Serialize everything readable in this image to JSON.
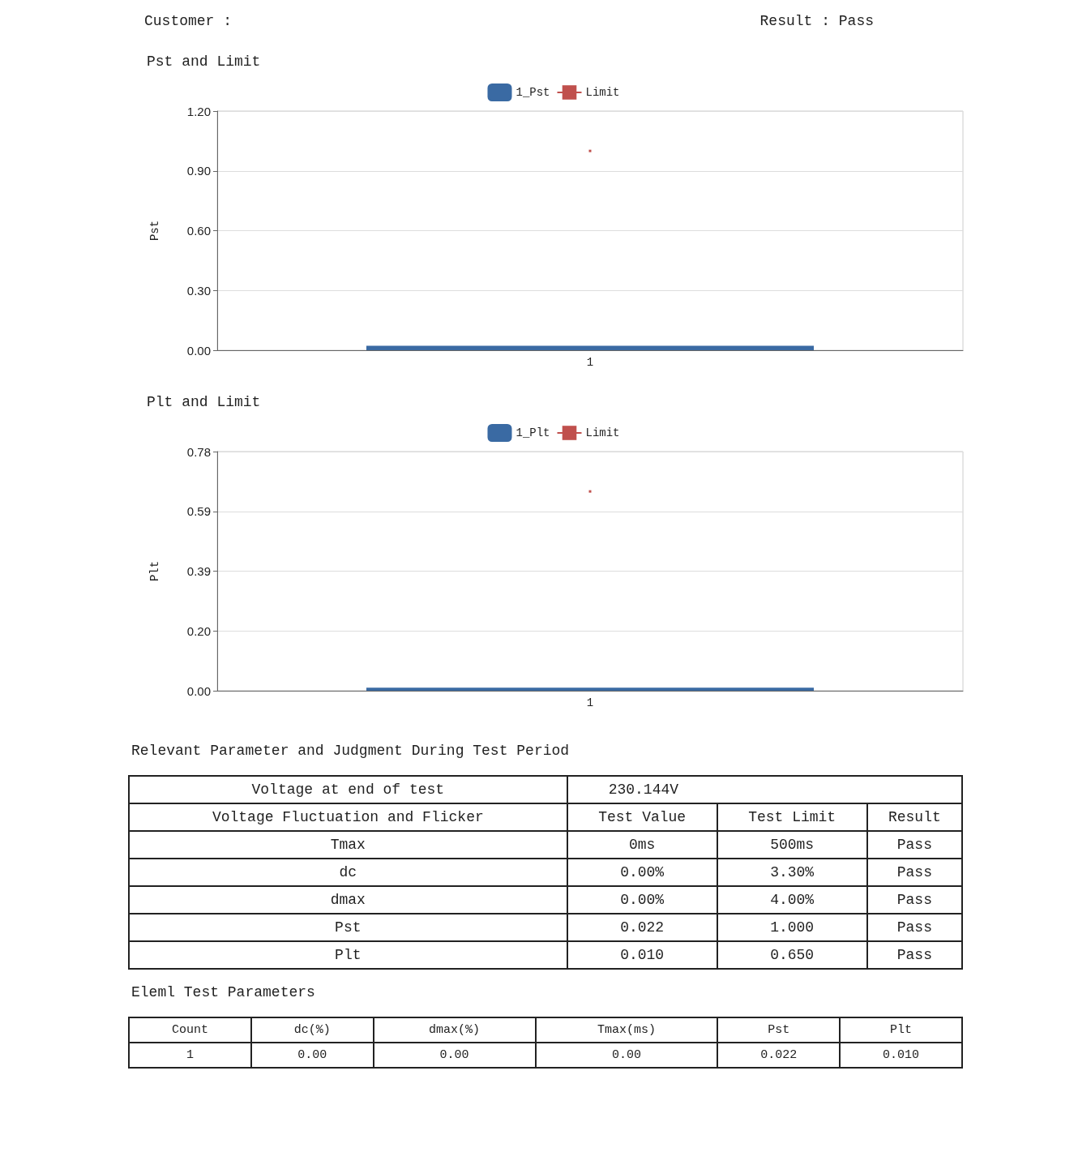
{
  "chart_data": [
    {
      "type": "other",
      "annotations": [
        "Customer :",
        "Result : Pass"
      ]
    },
    {
      "type": "bar",
      "title": "Pst and Limit",
      "ylabel": "Pst",
      "categories": [
        "1"
      ],
      "series": [
        {
          "name": "1_Pst",
          "type": "bar",
          "color": "#3a6aa3",
          "values": [
            0.022
          ]
        },
        {
          "name": "Limit",
          "type": "line",
          "color": "#c0504d",
          "values": [
            1.0
          ]
        }
      ],
      "ylim": [
        0,
        1.2
      ],
      "yticks": [
        {
          "value": 0,
          "label": "0.00"
        },
        {
          "value": 0.3,
          "label": "0.30"
        },
        {
          "value": 0.6,
          "label": "0.60"
        },
        {
          "value": 0.9,
          "label": "0.90"
        },
        {
          "value": 1.2,
          "label": "1.20"
        }
      ],
      "grid": "y",
      "legend": "top",
      "marker": "square"
    },
    {
      "type": "bar",
      "title": "Plt and Limit",
      "ylabel": "Plt",
      "categories": [
        "1"
      ],
      "series": [
        {
          "name": "1_Plt",
          "type": "bar",
          "color": "#3a6aa3",
          "values": [
            0.01
          ]
        },
        {
          "name": "Limit",
          "type": "line",
          "color": "#c0504d",
          "values": [
            0.65
          ]
        }
      ],
      "ylim": [
        0,
        0.78
      ],
      "yticks": [
        {
          "value": 0,
          "label": "0.00"
        },
        {
          "value": 0.195,
          "label": "0.20"
        },
        {
          "value": 0.39,
          "label": "0.39"
        },
        {
          "value": 0.585,
          "label": "0.59"
        },
        {
          "value": 0.78,
          "label": "0.78"
        }
      ],
      "grid": "y",
      "legend": "top",
      "marker": "square"
    },
    {
      "type": "other",
      "title": "Relevant Parameter and Judgment During Test Period",
      "cell_labels": [
        [
          "Voltage at end of test",
          "230.144V",
          null,
          null
        ],
        [
          "Voltage Fluctuation and Flicker",
          "Test Value",
          "Test Limit",
          "Result"
        ],
        [
          "Tmax",
          "0ms",
          "500ms",
          "Pass"
        ],
        [
          "dc",
          "0.00%",
          "3.30%",
          "Pass"
        ],
        [
          "dmax",
          "0.00%",
          "4.00%",
          "Pass"
        ],
        [
          "Pst",
          "0.022",
          "1.000",
          "Pass"
        ],
        [
          "Plt",
          "0.010",
          "0.650",
          "Pass"
        ]
      ]
    },
    {
      "type": "other",
      "title": "Eleml  Test Parameters",
      "cell_labels": [
        [
          "Count",
          "dc(%)",
          "dmax(%)",
          "Tmax(ms)",
          "Pst",
          "Plt"
        ],
        [
          "1",
          "0.00",
          "0.00",
          "0.00",
          "0.022",
          "0.010"
        ]
      ]
    }
  ]
}
